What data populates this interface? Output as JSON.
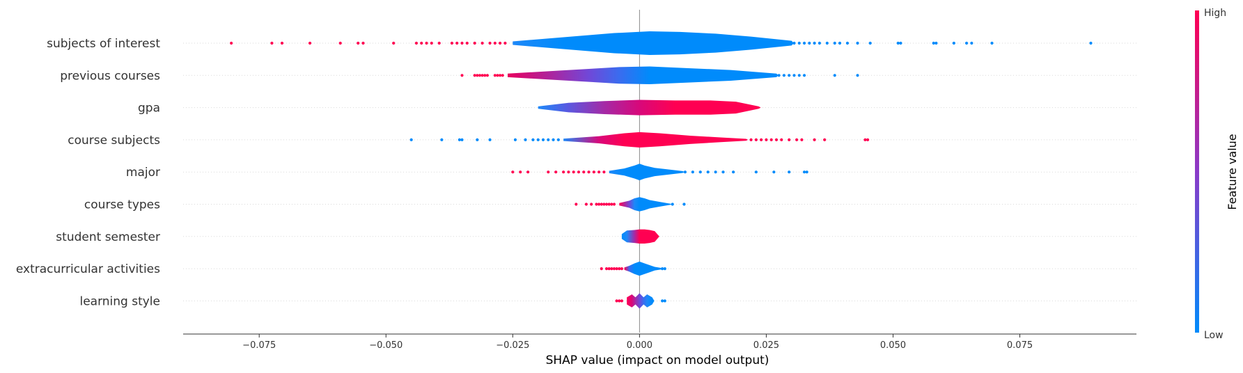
{
  "chart_data": {
    "type": "violin",
    "title": "",
    "xlabel": "SHAP value (impact on model output)",
    "ylabel": "",
    "xlim": [
      -0.09,
      0.098
    ],
    "x_ticks": [
      -0.075,
      -0.05,
      -0.025,
      0.0,
      0.025,
      0.05,
      0.075
    ],
    "x_tick_labels": [
      "−0.075",
      "−0.050",
      "−0.025",
      "0.000",
      "0.025",
      "0.050",
      "0.075"
    ],
    "grid": "dotted horizontal row guides",
    "colorbar": {
      "title": "Feature value",
      "high_label": "High",
      "low_label": "Low",
      "high_color": "#ff0052",
      "mid_color": "#8a3ac8",
      "low_color": "#008bfb"
    },
    "features": [
      {
        "name": "subjects of interest",
        "violin_x": [
          -0.025,
          -0.015,
          -0.005,
          0.002,
          0.008,
          0.015,
          0.022,
          0.03
        ],
        "violin_halfwidth": [
          0.15,
          0.5,
          0.85,
          1.0,
          0.95,
          0.8,
          0.55,
          0.2
        ],
        "violin_colors": [
          "#1e88f8",
          "#008bfb",
          "#008bfb",
          "#008bfb",
          "#008bfb",
          "#008bfb",
          "#008bfb",
          "#008bfb"
        ],
        "points": [
          {
            "x": -0.0805,
            "c": "high"
          },
          {
            "x": -0.0725,
            "c": "high"
          },
          {
            "x": -0.0705,
            "c": "high"
          },
          {
            "x": -0.065,
            "c": "high"
          },
          {
            "x": -0.059,
            "c": "high"
          },
          {
            "x": -0.0555,
            "c": "high"
          },
          {
            "x": -0.0545,
            "c": "high"
          },
          {
            "x": -0.0485,
            "c": "high"
          },
          {
            "x": -0.044,
            "c": "high"
          },
          {
            "x": -0.043,
            "c": "high"
          },
          {
            "x": -0.042,
            "c": "high"
          },
          {
            "x": -0.041,
            "c": "high"
          },
          {
            "x": -0.0395,
            "c": "high"
          },
          {
            "x": -0.037,
            "c": "high"
          },
          {
            "x": -0.036,
            "c": "high"
          },
          {
            "x": -0.035,
            "c": "high"
          },
          {
            "x": -0.034,
            "c": "high"
          },
          {
            "x": -0.0325,
            "c": "high"
          },
          {
            "x": -0.031,
            "c": "high"
          },
          {
            "x": -0.0295,
            "c": "high"
          },
          {
            "x": -0.0285,
            "c": "high"
          },
          {
            "x": -0.0275,
            "c": "high"
          },
          {
            "x": -0.0265,
            "c": "high"
          },
          {
            "x": 0.0305,
            "c": "low"
          },
          {
            "x": 0.0315,
            "c": "low"
          },
          {
            "x": 0.0325,
            "c": "low"
          },
          {
            "x": 0.0335,
            "c": "low"
          },
          {
            "x": 0.0345,
            "c": "low"
          },
          {
            "x": 0.0355,
            "c": "low"
          },
          {
            "x": 0.037,
            "c": "low"
          },
          {
            "x": 0.0385,
            "c": "low"
          },
          {
            "x": 0.0395,
            "c": "low"
          },
          {
            "x": 0.041,
            "c": "low"
          },
          {
            "x": 0.043,
            "c": "low"
          },
          {
            "x": 0.0455,
            "c": "low"
          },
          {
            "x": 0.051,
            "c": "low"
          },
          {
            "x": 0.0515,
            "c": "low"
          },
          {
            "x": 0.058,
            "c": "low"
          },
          {
            "x": 0.0585,
            "c": "low"
          },
          {
            "x": 0.062,
            "c": "low"
          },
          {
            "x": 0.0645,
            "c": "low"
          },
          {
            "x": 0.0655,
            "c": "low"
          },
          {
            "x": 0.0695,
            "c": "low"
          },
          {
            "x": 0.089,
            "c": "low"
          }
        ]
      },
      {
        "name": "previous courses",
        "violin_x": [
          -0.026,
          -0.018,
          -0.01,
          -0.004,
          0.002,
          0.01,
          0.018,
          0.027
        ],
        "violin_halfwidth": [
          0.15,
          0.35,
          0.55,
          0.7,
          0.75,
          0.6,
          0.45,
          0.15
        ],
        "violin_colors": [
          "#e8005e",
          "#b0229a",
          "#7048d8",
          "#3a6cef",
          "#008bfb",
          "#008bfb",
          "#008bfb",
          "#008bfb"
        ],
        "points": [
          {
            "x": -0.035,
            "c": "high"
          },
          {
            "x": -0.0325,
            "c": "high"
          },
          {
            "x": -0.032,
            "c": "high"
          },
          {
            "x": -0.0315,
            "c": "high"
          },
          {
            "x": -0.031,
            "c": "high"
          },
          {
            "x": -0.0305,
            "c": "high"
          },
          {
            "x": -0.03,
            "c": "high"
          },
          {
            "x": -0.0285,
            "c": "high"
          },
          {
            "x": -0.028,
            "c": "high"
          },
          {
            "x": -0.0275,
            "c": "high"
          },
          {
            "x": -0.027,
            "c": "high"
          },
          {
            "x": 0.0275,
            "c": "low"
          },
          {
            "x": 0.0285,
            "c": "low"
          },
          {
            "x": 0.0295,
            "c": "low"
          },
          {
            "x": 0.0305,
            "c": "low"
          },
          {
            "x": 0.0315,
            "c": "low"
          },
          {
            "x": 0.0325,
            "c": "low"
          },
          {
            "x": 0.0385,
            "c": "low"
          },
          {
            "x": 0.043,
            "c": "low"
          }
        ]
      },
      {
        "name": "gpa",
        "violin_x": [
          -0.02,
          -0.014,
          -0.007,
          0.0,
          0.007,
          0.014,
          0.019,
          0.0235
        ],
        "violin_halfwidth": [
          0.1,
          0.4,
          0.55,
          0.65,
          0.6,
          0.6,
          0.5,
          0.1
        ],
        "violin_colors": [
          "#1e88f8",
          "#5a58e0",
          "#a42aa6",
          "#d8087a",
          "#ff0052",
          "#ff0052",
          "#ff0052",
          "#ff0052"
        ],
        "points": []
      },
      {
        "name": "course subjects",
        "violin_x": [
          -0.015,
          -0.008,
          -0.003,
          0.0,
          0.004,
          0.01,
          0.016,
          0.021
        ],
        "violin_halfwidth": [
          0.1,
          0.3,
          0.55,
          0.65,
          0.55,
          0.35,
          0.2,
          0.08
        ],
        "violin_colors": [
          "#1e88f8",
          "#d8087a",
          "#ff0052",
          "#ff0052",
          "#ff0052",
          "#ff0052",
          "#ff0052",
          "#ff0052"
        ],
        "points": [
          {
            "x": -0.045,
            "c": "low"
          },
          {
            "x": -0.039,
            "c": "low"
          },
          {
            "x": -0.0355,
            "c": "low"
          },
          {
            "x": -0.035,
            "c": "low"
          },
          {
            "x": -0.032,
            "c": "low"
          },
          {
            "x": -0.0295,
            "c": "low"
          },
          {
            "x": -0.0245,
            "c": "low"
          },
          {
            "x": -0.0225,
            "c": "low"
          },
          {
            "x": -0.021,
            "c": "low"
          },
          {
            "x": -0.02,
            "c": "low"
          },
          {
            "x": -0.019,
            "c": "low"
          },
          {
            "x": -0.018,
            "c": "low"
          },
          {
            "x": -0.017,
            "c": "low"
          },
          {
            "x": -0.016,
            "c": "low"
          },
          {
            "x": 0.022,
            "c": "high"
          },
          {
            "x": 0.023,
            "c": "high"
          },
          {
            "x": 0.024,
            "c": "high"
          },
          {
            "x": 0.025,
            "c": "high"
          },
          {
            "x": 0.026,
            "c": "high"
          },
          {
            "x": 0.027,
            "c": "high"
          },
          {
            "x": 0.028,
            "c": "high"
          },
          {
            "x": 0.0295,
            "c": "high"
          },
          {
            "x": 0.031,
            "c": "high"
          },
          {
            "x": 0.032,
            "c": "high"
          },
          {
            "x": 0.0345,
            "c": "high"
          },
          {
            "x": 0.0365,
            "c": "high"
          },
          {
            "x": 0.0445,
            "c": "high"
          },
          {
            "x": 0.045,
            "c": "high"
          }
        ]
      },
      {
        "name": "major",
        "violin_x": [
          -0.006,
          -0.003,
          -0.001,
          0.0,
          0.001,
          0.003,
          0.006,
          0.0085
        ],
        "violin_halfwidth": [
          0.1,
          0.3,
          0.55,
          0.7,
          0.55,
          0.35,
          0.2,
          0.08
        ],
        "violin_colors": [
          "#1e88f8",
          "#008bfb",
          "#008bfb",
          "#008bfb",
          "#008bfb",
          "#008bfb",
          "#008bfb",
          "#008bfb"
        ],
        "points": [
          {
            "x": -0.025,
            "c": "high"
          },
          {
            "x": -0.0235,
            "c": "high"
          },
          {
            "x": -0.022,
            "c": "high"
          },
          {
            "x": -0.018,
            "c": "high"
          },
          {
            "x": -0.0165,
            "c": "high"
          },
          {
            "x": -0.015,
            "c": "high"
          },
          {
            "x": -0.014,
            "c": "high"
          },
          {
            "x": -0.013,
            "c": "high"
          },
          {
            "x": -0.012,
            "c": "high"
          },
          {
            "x": -0.011,
            "c": "high"
          },
          {
            "x": -0.01,
            "c": "high"
          },
          {
            "x": -0.009,
            "c": "high"
          },
          {
            "x": -0.008,
            "c": "high"
          },
          {
            "x": -0.007,
            "c": "high"
          },
          {
            "x": 0.009,
            "c": "low"
          },
          {
            "x": 0.0105,
            "c": "low"
          },
          {
            "x": 0.012,
            "c": "low"
          },
          {
            "x": 0.0135,
            "c": "low"
          },
          {
            "x": 0.015,
            "c": "low"
          },
          {
            "x": 0.0165,
            "c": "low"
          },
          {
            "x": 0.0185,
            "c": "low"
          },
          {
            "x": 0.023,
            "c": "low"
          },
          {
            "x": 0.0265,
            "c": "low"
          },
          {
            "x": 0.0295,
            "c": "low"
          },
          {
            "x": 0.0325,
            "c": "low"
          },
          {
            "x": 0.033,
            "c": "low"
          }
        ]
      },
      {
        "name": "course types",
        "violin_x": [
          -0.004,
          -0.002,
          -0.001,
          0.0,
          0.001,
          0.002,
          0.004,
          0.006
        ],
        "violin_halfwidth": [
          0.1,
          0.3,
          0.5,
          0.6,
          0.5,
          0.35,
          0.2,
          0.05
        ],
        "violin_colors": [
          "#ff0052",
          "#7048d8",
          "#1e88f8",
          "#008bfb",
          "#008bfb",
          "#008bfb",
          "#008bfb",
          "#008bfb"
        ],
        "points": [
          {
            "x": -0.0125,
            "c": "high"
          },
          {
            "x": -0.0105,
            "c": "high"
          },
          {
            "x": -0.0095,
            "c": "high"
          },
          {
            "x": -0.0085,
            "c": "high"
          },
          {
            "x": -0.008,
            "c": "high"
          },
          {
            "x": -0.0075,
            "c": "high"
          },
          {
            "x": -0.007,
            "c": "high"
          },
          {
            "x": -0.0065,
            "c": "high"
          },
          {
            "x": -0.006,
            "c": "high"
          },
          {
            "x": -0.0055,
            "c": "high"
          },
          {
            "x": -0.005,
            "c": "high"
          },
          {
            "x": 0.0065,
            "c": "low"
          },
          {
            "x": 0.0088,
            "c": "low"
          }
        ]
      },
      {
        "name": "student semester",
        "violin_x": [
          -0.0035,
          -0.0025,
          -0.001,
          0.0,
          0.001,
          0.002,
          0.003,
          0.0035
        ],
        "violin_halfwidth": [
          0.2,
          0.5,
          0.55,
          0.6,
          0.6,
          0.55,
          0.45,
          0.2
        ],
        "violin_colors": [
          "#008bfb",
          "#1e88f8",
          "#a42aa6",
          "#ff0052",
          "#ff0052",
          "#ff0052",
          "#ff0052",
          "#ff0052"
        ],
        "points": []
      },
      {
        "name": "extracurricular activities",
        "violin_x": [
          -0.003,
          -0.002,
          -0.001,
          0.0,
          0.001,
          0.002,
          0.003,
          0.0045
        ],
        "violin_halfwidth": [
          0.1,
          0.25,
          0.45,
          0.6,
          0.45,
          0.3,
          0.15,
          0.05
        ],
        "violin_colors": [
          "#ff0052",
          "#3a6cef",
          "#008bfb",
          "#008bfb",
          "#008bfb",
          "#008bfb",
          "#008bfb",
          "#008bfb"
        ],
        "points": [
          {
            "x": -0.0075,
            "c": "high"
          },
          {
            "x": -0.0065,
            "c": "high"
          },
          {
            "x": -0.006,
            "c": "high"
          },
          {
            "x": -0.0055,
            "c": "high"
          },
          {
            "x": -0.005,
            "c": "high"
          },
          {
            "x": -0.0045,
            "c": "high"
          },
          {
            "x": -0.004,
            "c": "high"
          },
          {
            "x": -0.0035,
            "c": "high"
          },
          {
            "x": 0.0045,
            "c": "low"
          },
          {
            "x": 0.005,
            "c": "low"
          }
        ]
      },
      {
        "name": "learning style",
        "violin_x": [
          -0.0025,
          -0.0015,
          -0.0008,
          0.0,
          0.0008,
          0.0015,
          0.0025
        ],
        "violin_halfwidth": [
          0.3,
          0.55,
          0.3,
          0.65,
          0.3,
          0.55,
          0.3
        ],
        "violin_colors": [
          "#ff0052",
          "#d8087a",
          "#a42aa6",
          "#7048d8",
          "#3a6cef",
          "#1e88f8",
          "#008bfb"
        ],
        "points": [
          {
            "x": -0.0045,
            "c": "high"
          },
          {
            "x": -0.004,
            "c": "high"
          },
          {
            "x": -0.0035,
            "c": "high"
          },
          {
            "x": 0.0045,
            "c": "low"
          },
          {
            "x": 0.005,
            "c": "low"
          }
        ]
      }
    ]
  }
}
